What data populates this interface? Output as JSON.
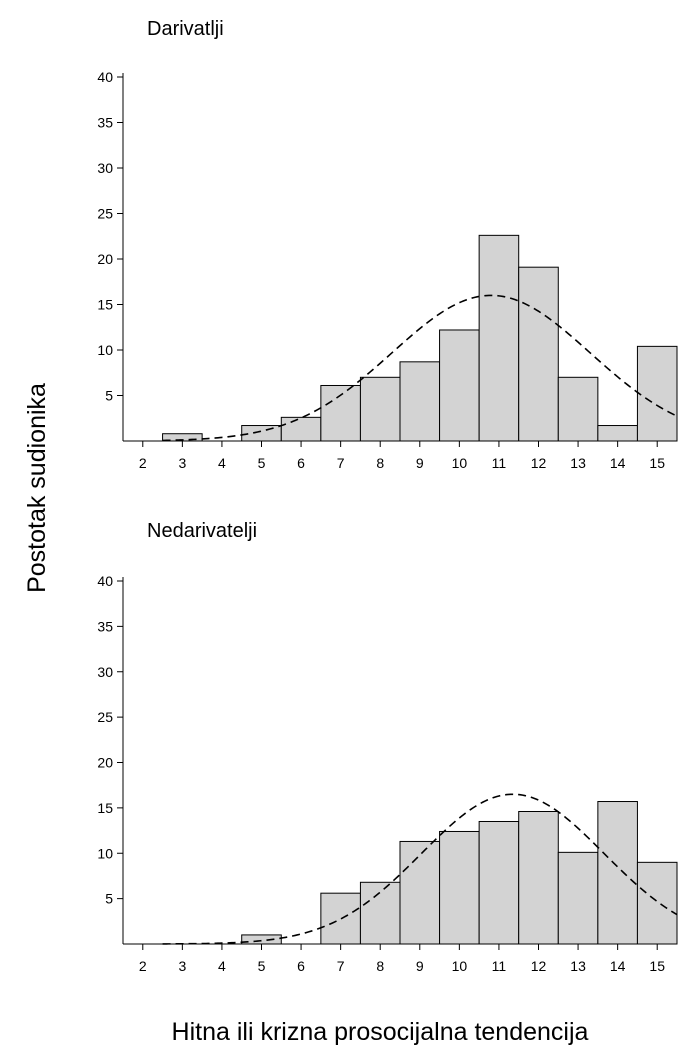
{
  "ylabel": "Postotak sudionika",
  "xlabel": "Hitna ili krizna prosocijalna tendencija",
  "chart_data": [
    {
      "type": "bar",
      "title": "Darivatlji",
      "categories": [
        "2",
        "3",
        "4",
        "5",
        "6",
        "7",
        "8",
        "9",
        "10",
        "11",
        "12",
        "13",
        "14",
        "15"
      ],
      "values": [
        0,
        0.8,
        0,
        1.7,
        2.6,
        6.1,
        7.0,
        8.7,
        12.2,
        22.6,
        19.1,
        7.0,
        1.7,
        10.4
      ],
      "curve": {
        "type": "normal",
        "peak_x": 10.8,
        "peak_y": 16.0,
        "sd": 2.5,
        "style": "dashed"
      },
      "ylim": [
        0,
        40
      ],
      "yticks": [
        5,
        10,
        15,
        20,
        25,
        30,
        35,
        40
      ],
      "xlim": [
        1.5,
        15.5
      ],
      "grid": false
    },
    {
      "type": "bar",
      "title": "Nedarivatelji",
      "categories": [
        "2",
        "3",
        "4",
        "5",
        "6",
        "7",
        "8",
        "9",
        "10",
        "11",
        "12",
        "13",
        "14",
        "15"
      ],
      "values": [
        0,
        0,
        0,
        1.0,
        0,
        5.6,
        6.8,
        11.3,
        12.4,
        13.5,
        14.6,
        10.1,
        15.7,
        9.0
      ],
      "curve": {
        "type": "normal",
        "peak_x": 11.35,
        "peak_y": 16.5,
        "sd": 2.3,
        "style": "dashed"
      },
      "ylim": [
        0,
        40
      ],
      "yticks": [
        5,
        10,
        15,
        20,
        25,
        30,
        35,
        40
      ],
      "xlim": [
        1.5,
        15.5
      ],
      "grid": false
    }
  ]
}
